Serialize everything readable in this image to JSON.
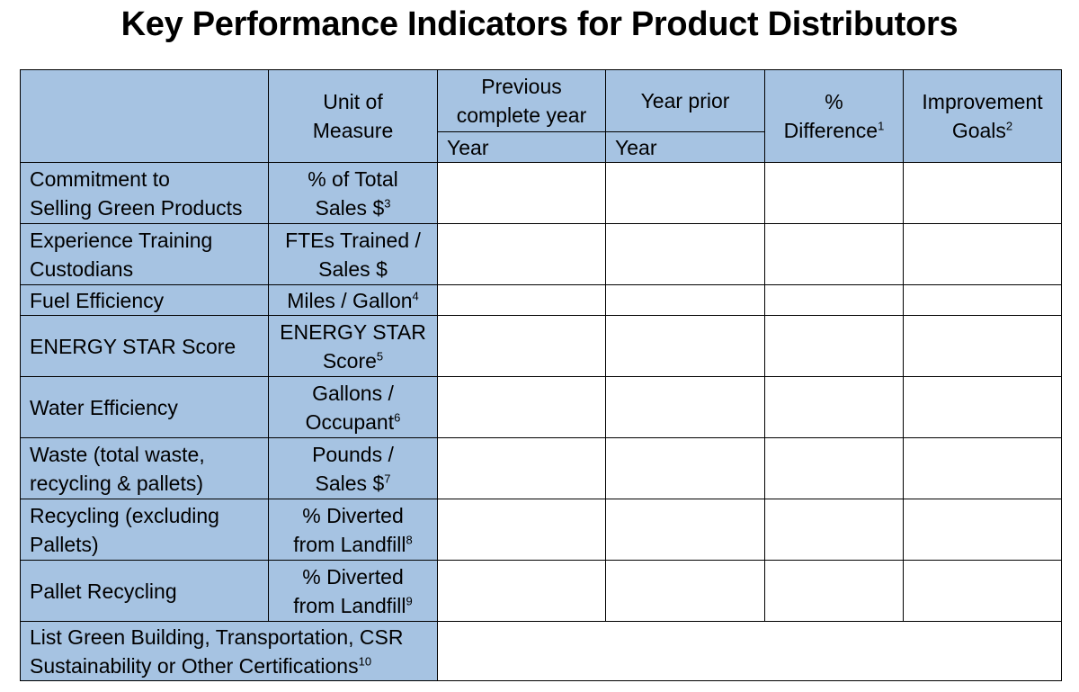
{
  "title": "Key Performance Indicators for Product Distributors",
  "header": {
    "unit_of_measure": [
      "Unit of",
      "Measure"
    ],
    "previous_complete_year": [
      "Previous",
      "complete year"
    ],
    "year_prior": "Year prior",
    "pct_difference": [
      "%",
      "Difference"
    ],
    "pct_difference_note": "1",
    "improvement_goals": [
      "Improvement",
      "Goals"
    ],
    "improvement_goals_note": "2",
    "year_sub_1": "Year",
    "year_sub_2": "Year"
  },
  "rows": [
    {
      "label": [
        "Commitment to",
        "Selling Green Products"
      ],
      "unit": [
        "% of Total",
        "Sales $"
      ],
      "note": "3"
    },
    {
      "label": [
        "Experience Training",
        "Custodians"
      ],
      "unit": [
        "FTEs Trained /",
        "Sales $"
      ],
      "note": ""
    },
    {
      "label": [
        "Fuel Efficiency"
      ],
      "unit": [
        "Miles / Gallon"
      ],
      "note": "4"
    },
    {
      "label": [
        "ENERGY STAR Score"
      ],
      "unit": [
        "ENERGY STAR",
        "Score"
      ],
      "note": "5"
    },
    {
      "label": [
        "Water Efficiency"
      ],
      "unit": [
        "Gallons /",
        "Occupant"
      ],
      "note": "6"
    },
    {
      "label": [
        "Waste (total waste,",
        "recycling & pallets)"
      ],
      "unit": [
        "Pounds /",
        "Sales $"
      ],
      "note": "7"
    },
    {
      "label": [
        "Recycling (excluding",
        "Pallets)"
      ],
      "unit": [
        "% Diverted",
        "from Landfill"
      ],
      "note": "8"
    },
    {
      "label": [
        "Pallet Recycling"
      ],
      "unit": [
        "% Diverted",
        "from Landfill"
      ],
      "note": "9"
    }
  ],
  "footer_row": {
    "label": [
      "List Green Building, Transportation, CSR",
      "Sustainability or Other Certifications"
    ],
    "note": "10"
  }
}
